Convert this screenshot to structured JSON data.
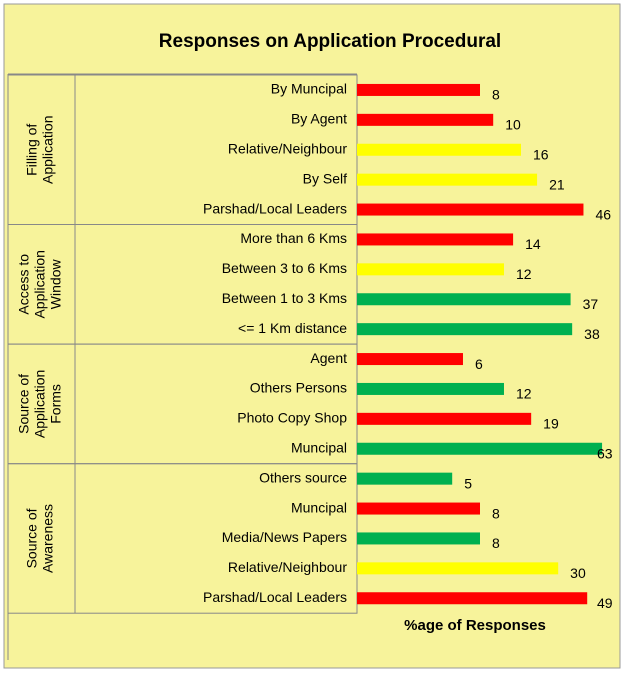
{
  "chart_data": {
    "type": "bar",
    "orientation": "horizontal",
    "title": "Responses on Application Procedural",
    "xlabel": "%age of Responses",
    "xscale": "log",
    "xlim": [
      1,
      64
    ],
    "groups": [
      {
        "label": [
          "Filling of",
          "Application"
        ],
        "categories": [
          "By Muncipal",
          "By Agent",
          "Relative/Neighbour",
          "By Self",
          "Parshad/Local Leaders"
        ],
        "values": [
          8,
          10,
          16,
          21,
          46
        ],
        "colors": [
          "#ff0000",
          "#ff0000",
          "#ffff00",
          "#ffff00",
          "#ff0000"
        ]
      },
      {
        "label": [
          "Access to",
          "Application",
          "Window"
        ],
        "categories": [
          "More than 6 Kms",
          "Between 3 to 6 Kms",
          "Between 1 to 3 Kms",
          "<= 1 Km distance"
        ],
        "values": [
          14,
          12,
          37,
          38
        ],
        "colors": [
          "#ff0000",
          "#ffff00",
          "#00b050",
          "#00b050"
        ]
      },
      {
        "label": [
          "Source of",
          "Application",
          "Forms"
        ],
        "categories": [
          "Agent",
          "Others Persons",
          "Photo Copy Shop",
          "Muncipal"
        ],
        "values": [
          6,
          12,
          19,
          63
        ],
        "colors": [
          "#ff0000",
          "#00b050",
          "#ff0000",
          "#00b050"
        ]
      },
      {
        "label": [
          "Source of",
          "Awareness"
        ],
        "categories": [
          "Others source",
          "Muncipal",
          "Media/News Papers",
          "Relative/Neighbour",
          "Parshad/Local Leaders"
        ],
        "values": [
          5,
          8,
          8,
          30,
          49
        ],
        "colors": [
          "#00b050",
          "#ff0000",
          "#00b050",
          "#ffff00",
          "#ff0000"
        ]
      }
    ]
  }
}
